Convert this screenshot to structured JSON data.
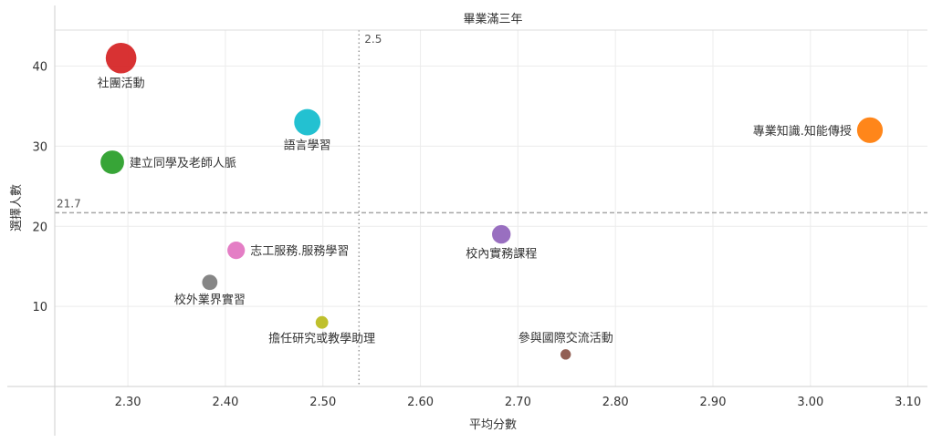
{
  "chart_data": {
    "type": "scatter",
    "title": "畢業滿三年",
    "xlabel": "平均分數",
    "ylabel": "選擇人數",
    "xlim": [
      2.225,
      3.12
    ],
    "ylim": [
      0,
      44.5
    ],
    "x_ticks": [
      2.3,
      2.4,
      2.5,
      2.6,
      2.7,
      2.8,
      2.9,
      3.0,
      3.1
    ],
    "x_tick_labels": [
      "2.30",
      "2.40",
      "2.50",
      "2.60",
      "2.70",
      "2.80",
      "2.90",
      "3.00",
      "3.10"
    ],
    "y_ticks": [
      10,
      20,
      30,
      40
    ],
    "y_tick_labels": [
      "10",
      "20",
      "30",
      "40"
    ],
    "grid": true,
    "reference_lines": [
      {
        "axis": "x",
        "value": 2.537,
        "label": "2.5",
        "style": "dotted"
      },
      {
        "axis": "y",
        "value": 21.7,
        "label": "21.7",
        "style": "dashed"
      }
    ],
    "points": [
      {
        "label": "社團活動",
        "x": 2.293,
        "y": 41,
        "color": "#d62728",
        "label_pos": "below"
      },
      {
        "label": "語言學習",
        "x": 2.484,
        "y": 33,
        "color": "#17becf",
        "label_pos": "below"
      },
      {
        "label": "專業知識.知能傳授",
        "x": 3.061,
        "y": 32,
        "color": "#ff7f0e",
        "label_pos": "left"
      },
      {
        "label": "建立同學及老師人脈",
        "x": 2.284,
        "y": 28,
        "color": "#2ca02c",
        "label_pos": "right"
      },
      {
        "label": "校內實務課程",
        "x": 2.683,
        "y": 19,
        "color": "#9467bd",
        "label_pos": "below"
      },
      {
        "label": "志工服務.服務學習",
        "x": 2.411,
        "y": 17,
        "color": "#e377c2",
        "label_pos": "right"
      },
      {
        "label": "校外業界實習",
        "x": 2.384,
        "y": 13,
        "color": "#7f7f7f",
        "label_pos": "below"
      },
      {
        "label": "擔任研究或教學助理",
        "x": 2.499,
        "y": 8,
        "color": "#bcbd22",
        "label_pos": "below"
      },
      {
        "label": "參與國際交流活動",
        "x": 2.749,
        "y": 4,
        "color": "#8c564b",
        "label_pos": "above"
      }
    ]
  }
}
